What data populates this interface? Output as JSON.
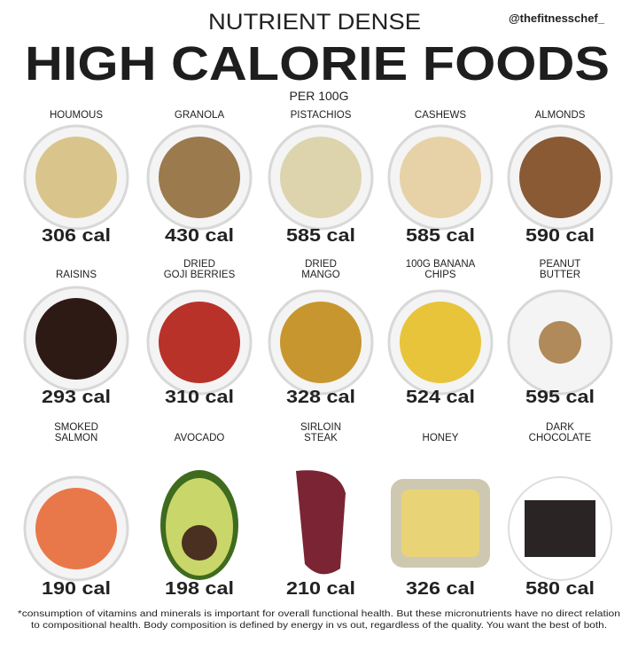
{
  "header": {
    "subtitle": "NUTRIENT DENSE",
    "handle": "@thefitnesschef_",
    "title": "HIGH CALORIE FOODS",
    "unit": "PER 100G"
  },
  "items": [
    {
      "label": [
        "HOUMOUS"
      ],
      "calories": "306 cal"
    },
    {
      "label": [
        "GRANOLA"
      ],
      "calories": "430 cal"
    },
    {
      "label": [
        "PISTACHIOS"
      ],
      "calories": "585 cal"
    },
    {
      "label": [
        "CASHEWS"
      ],
      "calories": "585 cal"
    },
    {
      "label": [
        "ALMONDS"
      ],
      "calories": "590 cal"
    },
    {
      "label": [
        "RAISINS"
      ],
      "calories": "293 cal"
    },
    {
      "label": [
        "DRIED",
        "GOJI BERRIES"
      ],
      "calories": "310 cal"
    },
    {
      "label": [
        "DRIED",
        "MANGO"
      ],
      "calories": "328 cal"
    },
    {
      "label": [
        "100G BANANA",
        "CHIPS"
      ],
      "calories": "524 cal"
    },
    {
      "label": [
        "PEANUT",
        "BUTTER"
      ],
      "calories": "595 cal"
    },
    {
      "label": [
        "SMOKED",
        "SALMON"
      ],
      "calories": "190 cal"
    },
    {
      "label": [
        "AVOCADO"
      ],
      "calories": "198 cal"
    },
    {
      "label": [
        "SIRLOIN",
        "STEAK"
      ],
      "calories": "210 cal"
    },
    {
      "label": [
        "HONEY"
      ],
      "calories": "326 cal"
    },
    {
      "label": [
        "DARK",
        "CHOCOLATE"
      ],
      "calories": "580 cal"
    }
  ],
  "footnote": [
    "*consumption of vitamins and minerals is important for overall functional health. But these micronutrients have no direct relation",
    "to compositional health. Body composition is defined by energy in vs out, regardless of the quality. You want the best of both."
  ]
}
